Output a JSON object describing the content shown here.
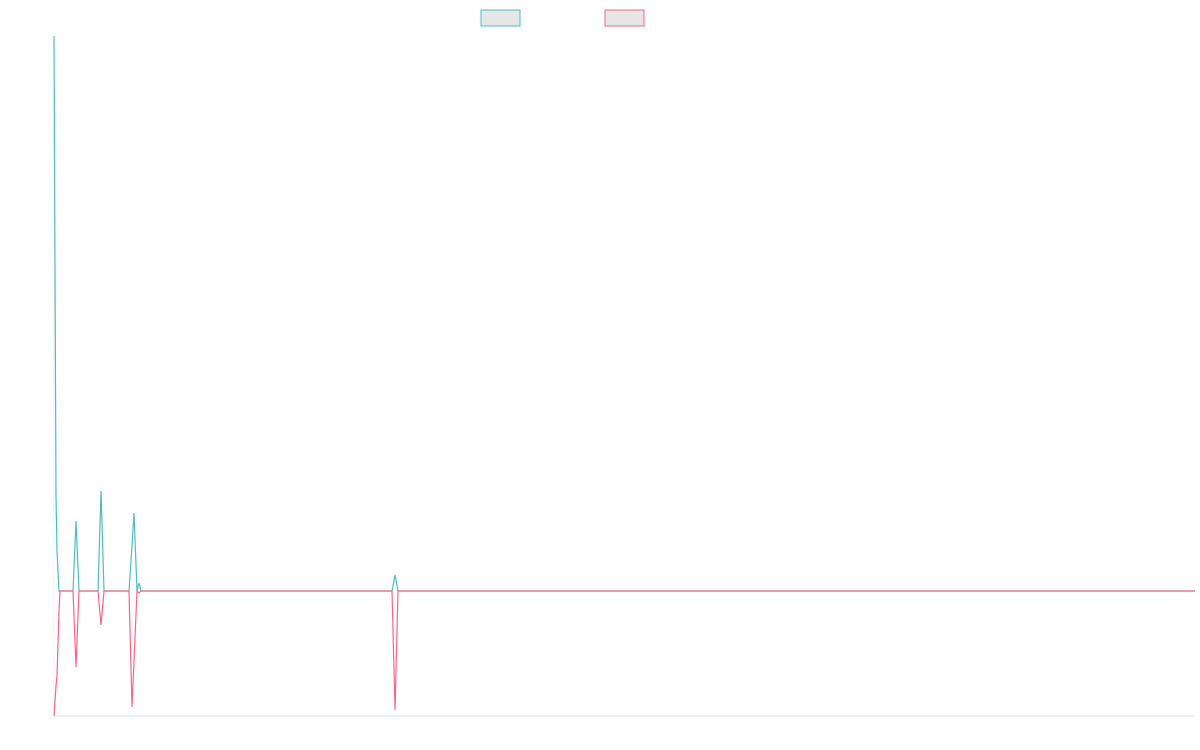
{
  "chart_data": {
    "type": "line",
    "x": [
      0,
      2,
      3,
      5,
      6,
      19,
      22,
      25,
      44,
      47,
      50,
      75,
      78,
      80,
      83,
      85,
      87,
      338,
      341,
      344,
      1141
    ],
    "xlim": [
      0,
      1141
    ],
    "ylim": [
      -125,
      555
    ],
    "series": [
      {
        "color": "#4bc0c0",
        "values": [
          555,
          95,
          40,
          0,
          0,
          0,
          70,
          0,
          0,
          100,
          0,
          0,
          45,
          78,
          0,
          8,
          0,
          0,
          16,
          0,
          0
        ]
      },
      {
        "color": "#ff6384",
        "values": [
          -125,
          -95,
          -85,
          -20,
          0,
          0,
          -76,
          0,
          0,
          -34,
          0,
          0,
          -116,
          -70,
          0,
          -2,
          0,
          0,
          -119,
          0,
          0
        ]
      }
    ]
  }
}
